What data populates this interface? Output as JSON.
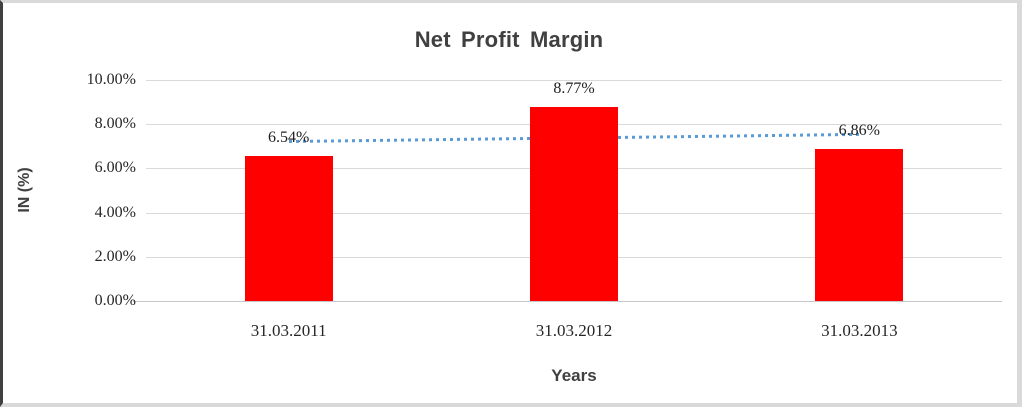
{
  "window": {
    "background": "#ffffff",
    "border_left_color": "#404040",
    "border_color": "#d9d9d9"
  },
  "chart_data": {
    "type": "bar",
    "title": "Net Profit Margin",
    "xlabel": "Years",
    "ylabel": "IN (%)",
    "categories": [
      "31.03.2011",
      "31.03.2012",
      "31.03.2013"
    ],
    "values": [
      6.54,
      8.77,
      6.86
    ],
    "data_labels": [
      "6.54%",
      "8.77%",
      "6.86%"
    ],
    "ytick_labels": [
      "0.00%",
      "2.00%",
      "4.00%",
      "6.00%",
      "8.00%",
      "10.00%"
    ],
    "ytick_values": [
      0,
      2,
      4,
      6,
      8,
      10
    ],
    "ylim": [
      0,
      10
    ],
    "grid": true,
    "legend": "none",
    "bar_color": "#ff0000",
    "gridline_color": "#d9d9d9",
    "text_color": "#262626",
    "title_color": "#404040",
    "trendline": {
      "type": "linear",
      "style": "dotted",
      "color": "#5b9bd5",
      "start_value": 7.23,
      "end_value": 7.55
    }
  }
}
